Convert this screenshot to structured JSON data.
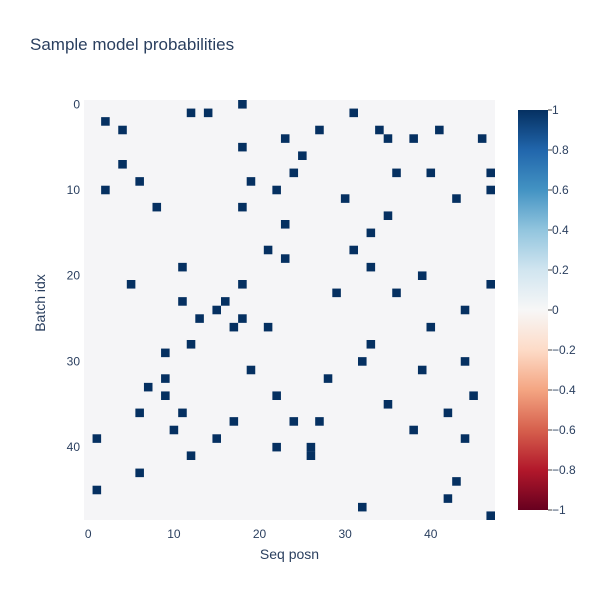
{
  "chart_data": {
    "type": "heatmap",
    "title": "Sample model probabilities",
    "xlabel": "Seq posn",
    "ylabel": "Batch idx",
    "x_range": [
      -0.5,
      47.5
    ],
    "y_range": [
      -0.5,
      48.5
    ],
    "y_reversed": true,
    "x_ticks": [
      0,
      10,
      20,
      30,
      40
    ],
    "y_ticks": [
      0,
      10,
      20,
      30,
      40
    ],
    "colorscale": "RdBu",
    "zmin": -1,
    "zmax": 1,
    "colorbar_ticks": [
      1,
      0.8,
      0.6,
      0.4,
      0.2,
      0,
      -0.2,
      -0.4,
      -0.6,
      -0.8,
      -1
    ],
    "colorbar_tick_labels": [
      "1",
      "0.8",
      "0.6",
      "0.4",
      "0.2",
      "0",
      "−0.2",
      "−0.4",
      "−0.6",
      "−0.8",
      "−1"
    ],
    "background_value": 0,
    "cell_value": 1,
    "cells": [
      [
        18,
        0
      ],
      [
        12,
        1
      ],
      [
        14,
        1
      ],
      [
        31,
        1
      ],
      [
        2,
        2
      ],
      [
        4,
        3
      ],
      [
        27,
        3
      ],
      [
        34,
        3
      ],
      [
        41,
        3
      ],
      [
        23,
        4
      ],
      [
        35,
        4
      ],
      [
        38,
        4
      ],
      [
        46,
        4
      ],
      [
        18,
        5
      ],
      [
        25,
        6
      ],
      [
        4,
        7
      ],
      [
        24,
        8
      ],
      [
        36,
        8
      ],
      [
        40,
        8
      ],
      [
        47,
        8
      ],
      [
        6,
        9
      ],
      [
        19,
        9
      ],
      [
        2,
        10
      ],
      [
        22,
        10
      ],
      [
        47,
        10
      ],
      [
        30,
        11
      ],
      [
        43,
        11
      ],
      [
        8,
        12
      ],
      [
        18,
        12
      ],
      [
        35,
        13
      ],
      [
        23,
        14
      ],
      [
        33,
        15
      ],
      [
        21,
        17
      ],
      [
        31,
        17
      ],
      [
        23,
        18
      ],
      [
        11,
        19
      ],
      [
        33,
        19
      ],
      [
        39,
        20
      ],
      [
        5,
        21
      ],
      [
        18,
        21
      ],
      [
        47,
        21
      ],
      [
        29,
        22
      ],
      [
        36,
        22
      ],
      [
        11,
        23
      ],
      [
        16,
        23
      ],
      [
        15,
        24
      ],
      [
        44,
        24
      ],
      [
        13,
        25
      ],
      [
        18,
        25
      ],
      [
        17,
        26
      ],
      [
        21,
        26
      ],
      [
        40,
        26
      ],
      [
        12,
        28
      ],
      [
        33,
        28
      ],
      [
        9,
        29
      ],
      [
        32,
        30
      ],
      [
        44,
        30
      ],
      [
        19,
        31
      ],
      [
        39,
        31
      ],
      [
        9,
        32
      ],
      [
        28,
        32
      ],
      [
        7,
        33
      ],
      [
        9,
        34
      ],
      [
        22,
        34
      ],
      [
        45,
        34
      ],
      [
        35,
        35
      ],
      [
        6,
        36
      ],
      [
        11,
        36
      ],
      [
        42,
        36
      ],
      [
        17,
        37
      ],
      [
        24,
        37
      ],
      [
        27,
        37
      ],
      [
        10,
        38
      ],
      [
        38,
        38
      ],
      [
        1,
        39
      ],
      [
        15,
        39
      ],
      [
        44,
        39
      ],
      [
        22,
        40
      ],
      [
        26,
        40
      ],
      [
        12,
        41
      ],
      [
        26,
        41
      ],
      [
        6,
        43
      ],
      [
        43,
        44
      ],
      [
        1,
        45
      ],
      [
        42,
        46
      ],
      [
        32,
        47
      ],
      [
        47,
        48
      ]
    ]
  }
}
